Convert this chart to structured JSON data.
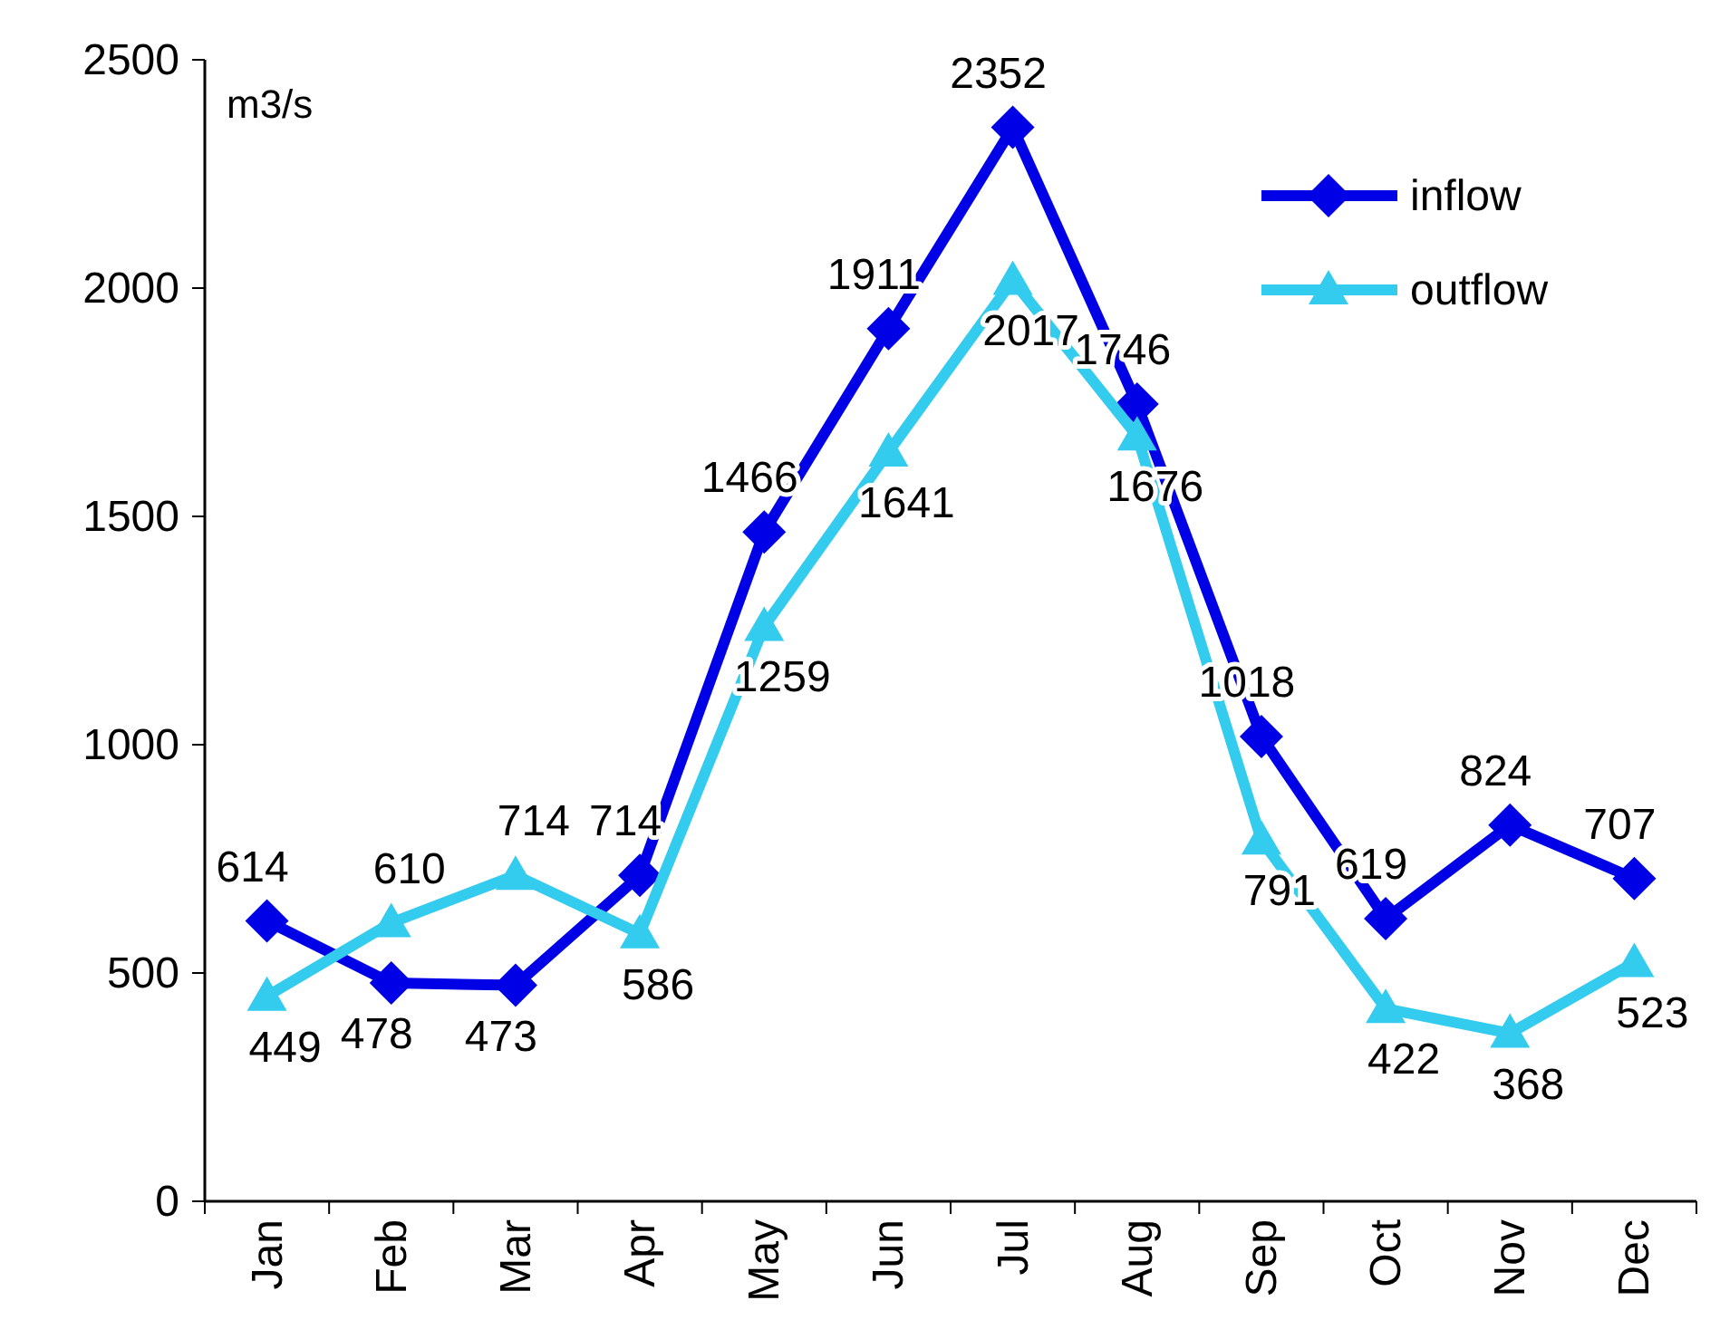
{
  "chart_data": {
    "type": "line",
    "ylabel": "m3/s",
    "categories": [
      "Jan",
      "Feb",
      "Mar",
      "Apr",
      "May",
      "Jun",
      "Jul",
      "Aug",
      "Sep",
      "Oct",
      "Nov",
      "Dec"
    ],
    "series": [
      {
        "name": "inflow",
        "color": "#0000e6",
        "marker": "diamond",
        "values": [
          614,
          478,
          473,
          714,
          1466,
          1911,
          2352,
          1746,
          1018,
          619,
          824,
          707
        ]
      },
      {
        "name": "outflow",
        "color": "#33ccee",
        "marker": "triangle",
        "values": [
          449,
          610,
          714,
          586,
          1259,
          1641,
          2017,
          1676,
          791,
          422,
          368,
          523
        ]
      }
    ],
    "ylim": [
      0,
      2500
    ],
    "yticks": [
      0,
      500,
      1000,
      1500,
      2000,
      2500
    ],
    "grid": false,
    "legend": "top right",
    "data_labels": true,
    "line_style": "solid"
  }
}
